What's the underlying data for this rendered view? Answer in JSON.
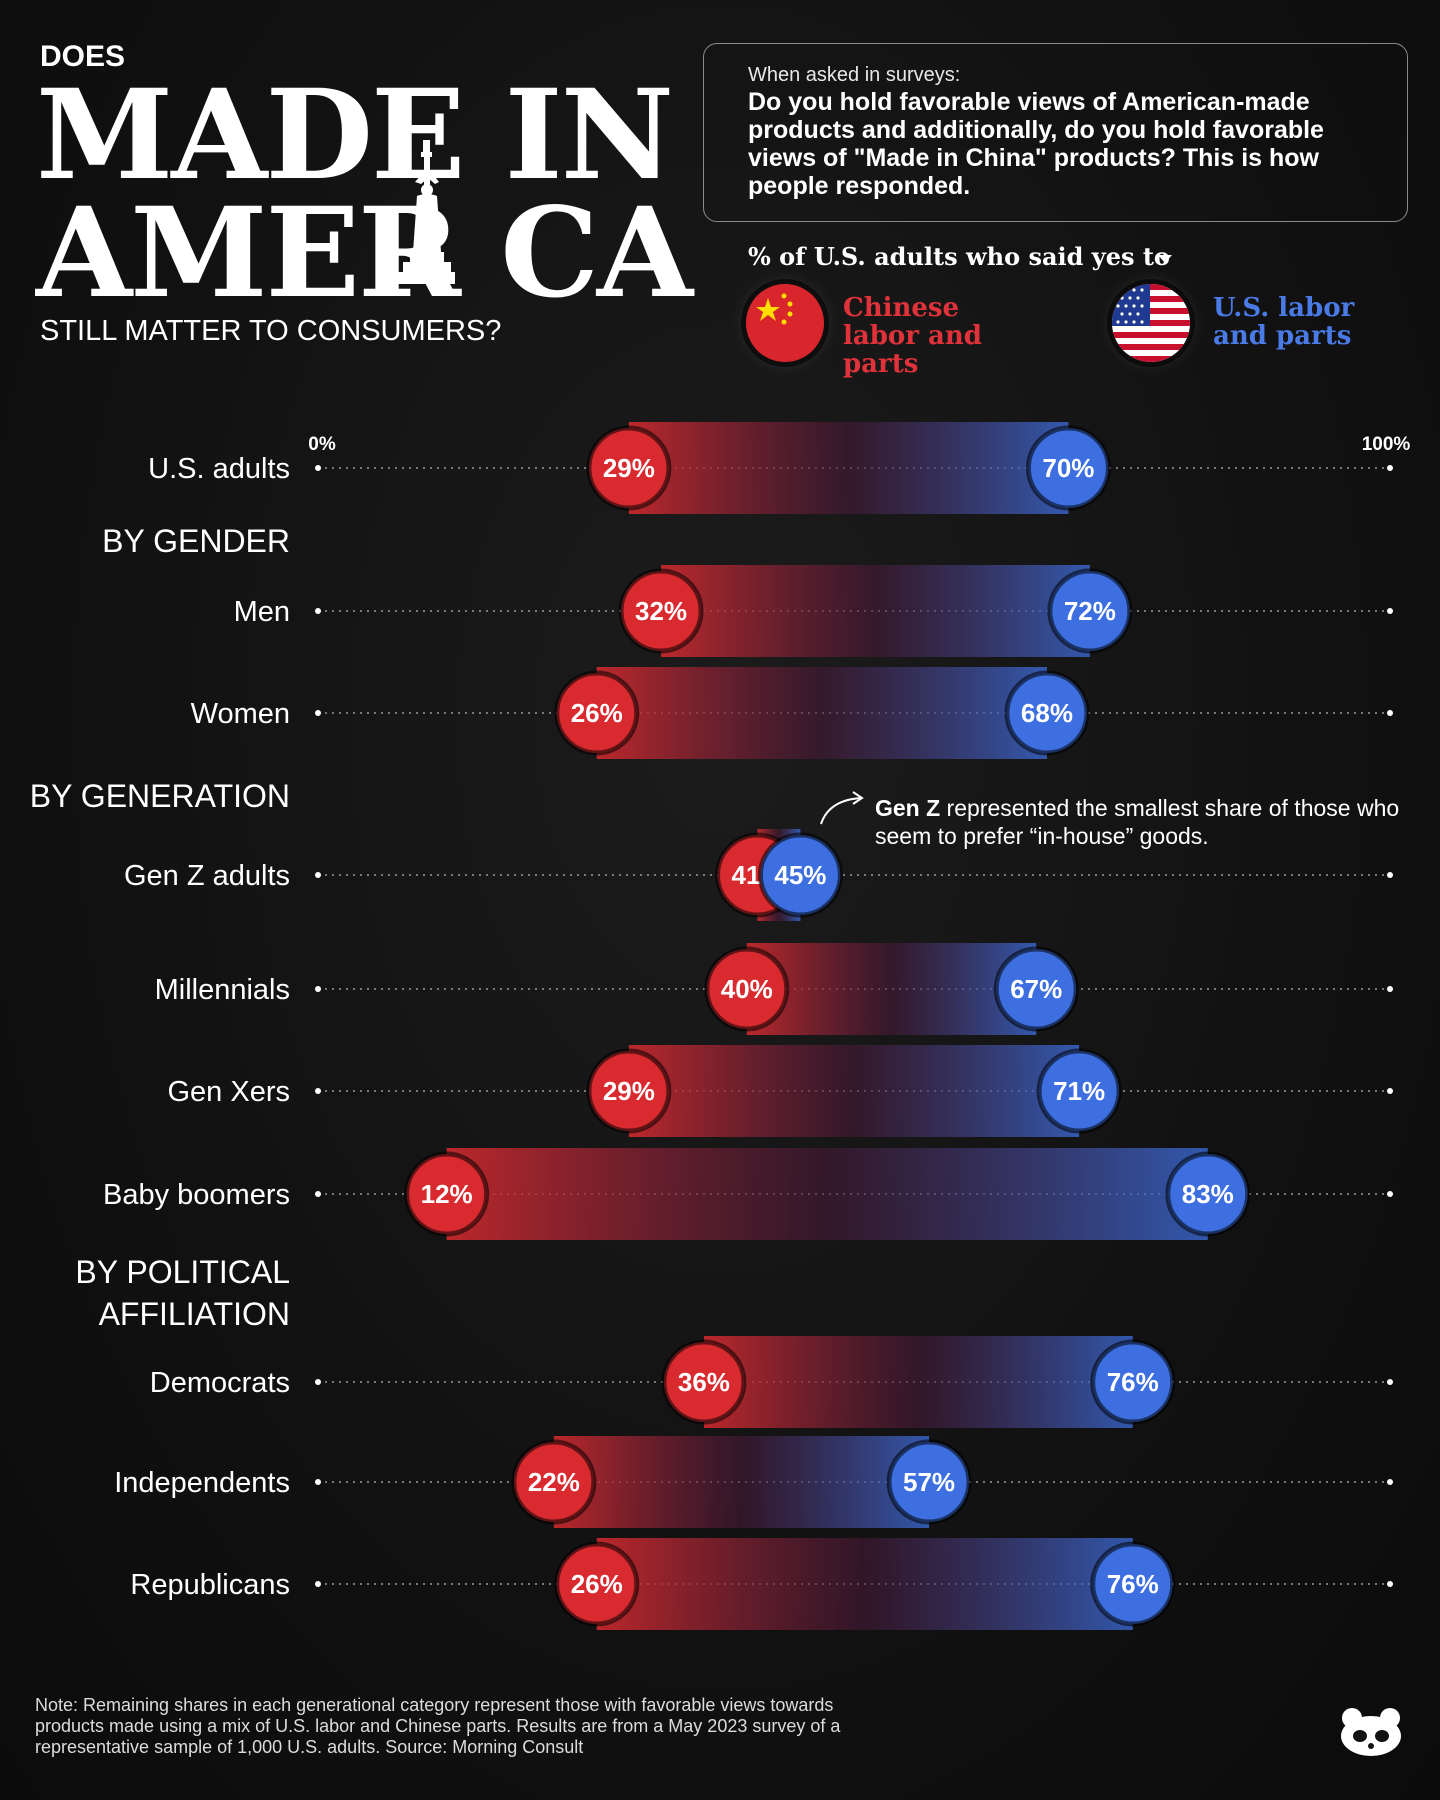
{
  "header": {
    "kicker": "DOES",
    "title_line1": "MADE IN",
    "title_line2": "AMER CA",
    "subtitle": "STILL MATTER TO CONSUMERS?"
  },
  "question": {
    "lead": "When asked in surveys:",
    "text": "Do you hold favorable views of American-made products and additionally, do you hold favorable views of \"Made in China\" products? This is how people responded."
  },
  "legend": {
    "title": "% of U.S. adults who said yes to",
    "chinese_label": "Chinese labor and parts",
    "us_label": "U.S. labor and parts"
  },
  "colors": {
    "chinese": "#d92b2f",
    "us": "#3d6fe0",
    "background": "#121212"
  },
  "annotation": {
    "bold": "Gen Z",
    "text": " represented the smallest share of those who seem to prefer “in-house” goods."
  },
  "note": "Note: Remaining shares in each generational category represent those with favorable views towards products made using a mix of U.S. labor and Chinese parts. Results are from a May 2023 survey of a representative sample of 1,000 U.S. adults. Source: Morning Consult",
  "chart_data": {
    "type": "dumbbell",
    "xlim": [
      0,
      100
    ],
    "axis_labels": [
      "0%",
      "100%"
    ],
    "series": [
      {
        "name": "Chinese labor and parts",
        "color": "#d92b2f"
      },
      {
        "name": "U.S. labor and parts",
        "color": "#3d6fe0"
      }
    ],
    "sections": [
      "BY GENDER",
      "BY GENERATION",
      "BY POLITICAL\nAFFILIATION"
    ],
    "rows": [
      {
        "label": "U.S. adults",
        "section": "",
        "chinese": 29,
        "us": 70,
        "chinese_text": "29%",
        "us_text": "70%"
      },
      {
        "label": "Men",
        "section": "BY GENDER",
        "chinese": 32,
        "us": 72,
        "chinese_text": "32%",
        "us_text": "72%"
      },
      {
        "label": "Women",
        "section": "BY GENDER",
        "chinese": 26,
        "us": 68,
        "chinese_text": "26%",
        "us_text": "68%"
      },
      {
        "label": "Gen Z adults",
        "section": "BY GENERATION",
        "chinese": 41,
        "us": 45,
        "chinese_text": "41%",
        "us_text": "45%"
      },
      {
        "label": "Millennials",
        "section": "BY GENERATION",
        "chinese": 40,
        "us": 67,
        "chinese_text": "40%",
        "us_text": "67%"
      },
      {
        "label": "Gen Xers",
        "section": "BY GENERATION",
        "chinese": 29,
        "us": 71,
        "chinese_text": "29%",
        "us_text": "71%"
      },
      {
        "label": "Baby boomers",
        "section": "BY GENERATION",
        "chinese": 12,
        "us": 83,
        "chinese_text": "12%",
        "us_text": "83%"
      },
      {
        "label": "Democrats",
        "section": "BY POLITICAL\nAFFILIATION",
        "chinese": 36,
        "us": 76,
        "chinese_text": "36%",
        "us_text": "76%"
      },
      {
        "label": "Independents",
        "section": "BY POLITICAL\nAFFILIATION",
        "chinese": 22,
        "us": 57,
        "chinese_text": "22%",
        "us_text": "57%"
      },
      {
        "label": "Republicans",
        "section": "BY POLITICAL\nAFFILIATION",
        "chinese": 26,
        "us": 76,
        "chinese_text": "26%",
        "us_text": "76%"
      }
    ]
  }
}
